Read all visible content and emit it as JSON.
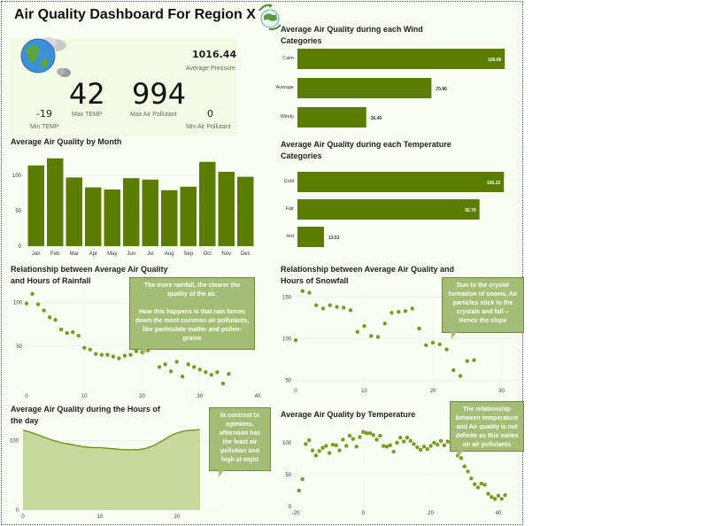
{
  "dashboard": {
    "title": "Air Quality Dashboard For Region X",
    "accent": "#5a7d00"
  },
  "kpis": {
    "avg_pressure": {
      "value": "1016.44",
      "label": "Average Pressure"
    },
    "max_temp": {
      "value": "42",
      "label": "Max TEMP"
    },
    "max_pollutant": {
      "value": "994",
      "label": "Max Air Pollutant"
    },
    "min_temp": {
      "value": "-19",
      "label": "Min TEMP"
    },
    "min_pollutant": {
      "value": "0",
      "label": "Min Air Pollutant"
    }
  },
  "icons": {
    "logo": "recycle-globe-icon",
    "globe": "cloudy-globe-icon"
  },
  "annotations": {
    "rainfall": "The more rainfall, the clearer the quality of the air.\n\nHow this happens is that rain forces down the most common air pollutants, like particulate matter and pollen-grains",
    "snowfall": "Due to the crystal formation of snows, Air particles stick to the crystals and fall -- Hence the slope",
    "hours": "In contrast to opinions, afternoon has the least air pollution and high at night",
    "temperature": "The relationship between temperature and Air quality is not definite as this varies on air pollutants"
  },
  "chart_data": [
    {
      "id": "wind",
      "type": "bar",
      "orientation": "horizontal",
      "title": "Average Air Quality during each Wind Categories",
      "categories": [
        "Calm",
        "Average",
        "Windy"
      ],
      "values": [
        109.66,
        70.86,
        36.4
      ],
      "value_labels": [
        "109.66",
        "70.86",
        "36.40"
      ],
      "xlim": [
        0,
        110
      ]
    },
    {
      "id": "temp_cat",
      "type": "bar",
      "orientation": "horizontal",
      "title": "Average Air Quality during each Temperature Categories",
      "categories": [
        "Cold",
        "Fair",
        "Hot"
      ],
      "values": [
        105.22,
        92.79,
        13.53
      ],
      "value_labels": [
        "105.22",
        "92.79",
        "13.53"
      ],
      "xlim": [
        0,
        106
      ]
    },
    {
      "id": "month",
      "type": "bar",
      "title": "Average Air Quality by Month",
      "categories": [
        "Jan",
        "Feb",
        "Mar",
        "Apr",
        "May",
        "Jun",
        "Jul",
        "Aug",
        "Sep",
        "Oct",
        "Nov",
        "Dec"
      ],
      "values": [
        114,
        124,
        97,
        83,
        80,
        96,
        94,
        79,
        84,
        119,
        105,
        98
      ],
      "yticks": [
        0,
        50,
        100
      ],
      "ylim": [
        0,
        135
      ]
    },
    {
      "id": "rainfall",
      "type": "scatter",
      "title": "Relationship between Average Air Quality and Hours of Rainfall",
      "x": [
        0,
        1,
        2,
        3,
        4,
        5,
        6,
        7,
        8,
        9,
        10,
        11,
        12,
        13,
        14,
        15,
        16,
        17,
        18,
        19,
        20,
        21,
        22,
        23,
        24,
        25,
        26,
        27,
        28,
        29,
        30,
        31,
        32,
        33,
        34,
        35
      ],
      "y": [
        99,
        110,
        98,
        91,
        83,
        80,
        69,
        65,
        66,
        62,
        48,
        46,
        41,
        40,
        40,
        38,
        36,
        39,
        40,
        44,
        43,
        45,
        48,
        26,
        29,
        21,
        32,
        15,
        29,
        26,
        23,
        20,
        17,
        20,
        7,
        18
      ],
      "xticks": [
        0,
        10,
        20,
        30,
        40
      ],
      "yticks": [
        50,
        100
      ],
      "xlim": [
        0,
        40
      ],
      "ylim": [
        0,
        120
      ]
    },
    {
      "id": "snowfall",
      "type": "scatter",
      "title": "Relationship between Average Air Quality and Hours of Snowfall",
      "x": [
        0,
        1,
        2,
        3,
        4,
        5,
        6,
        7,
        8,
        9,
        10,
        11,
        12,
        13,
        14,
        15,
        16,
        17,
        18,
        19,
        20,
        21,
        22,
        23,
        24,
        25,
        26,
        27
      ],
      "y": [
        98,
        157,
        155,
        140,
        136,
        140,
        138,
        137,
        134,
        108,
        115,
        103,
        102,
        118,
        131,
        132,
        133,
        136,
        112,
        92,
        95,
        93,
        87,
        62,
        55,
        73,
        74,
        110
      ],
      "xticks": [
        0,
        10,
        20,
        30
      ],
      "yticks": [
        50,
        100,
        150
      ],
      "xlim": [
        0,
        32
      ],
      "ylim": [
        45,
        162
      ]
    },
    {
      "id": "hours",
      "type": "area",
      "title": "Average Air Quality during the Hours of the day",
      "x": [
        0,
        1,
        2,
        3,
        4,
        5,
        6,
        7,
        8,
        9,
        10,
        11,
        12,
        13,
        14,
        15,
        16,
        17,
        18,
        19,
        20,
        21,
        22,
        23
      ],
      "y": [
        115,
        112,
        108,
        104,
        100,
        97,
        95,
        93,
        91,
        90,
        90,
        89,
        88,
        87,
        87,
        87,
        89,
        93,
        99,
        106,
        111,
        114,
        115,
        116
      ],
      "xticks": [
        0,
        10,
        20
      ],
      "yticks": [
        0,
        100
      ],
      "xlim": [
        0,
        26
      ],
      "ylim": [
        0,
        125
      ]
    },
    {
      "id": "temperature",
      "type": "scatter",
      "title": "Average Air Quality by Temperature",
      "x": [
        -19,
        -18,
        -17,
        -16,
        -15,
        -14,
        -13,
        -12,
        -11,
        -10,
        -9,
        -8,
        -7,
        -6,
        -5,
        -4,
        -3,
        -2,
        -1,
        0,
        1,
        2,
        3,
        4,
        5,
        6,
        7,
        8,
        9,
        10,
        11,
        12,
        13,
        14,
        15,
        16,
        17,
        18,
        19,
        20,
        21,
        22,
        23,
        24,
        25,
        26,
        27,
        28,
        29,
        30,
        31,
        32,
        33,
        34,
        35,
        36,
        37,
        38,
        39,
        40,
        41,
        42
      ],
      "y": [
        25,
        43,
        98,
        104,
        88,
        80,
        87,
        92,
        95,
        84,
        97,
        96,
        88,
        105,
        95,
        111,
        106,
        94,
        109,
        117,
        115,
        115,
        112,
        105,
        111,
        95,
        94,
        96,
        86,
        100,
        108,
        102,
        108,
        103,
        98,
        93,
        89,
        94,
        90,
        95,
        100,
        97,
        103,
        96,
        102,
        100,
        91,
        80,
        76,
        63,
        55,
        44,
        35,
        30,
        36,
        34,
        20,
        15,
        12,
        17,
        12,
        18
      ],
      "xticks": [
        -20,
        0,
        20,
        40
      ],
      "yticks": [
        0,
        50,
        100
      ],
      "xlim": [
        -20,
        45
      ],
      "ylim": [
        0,
        125
      ]
    }
  ]
}
